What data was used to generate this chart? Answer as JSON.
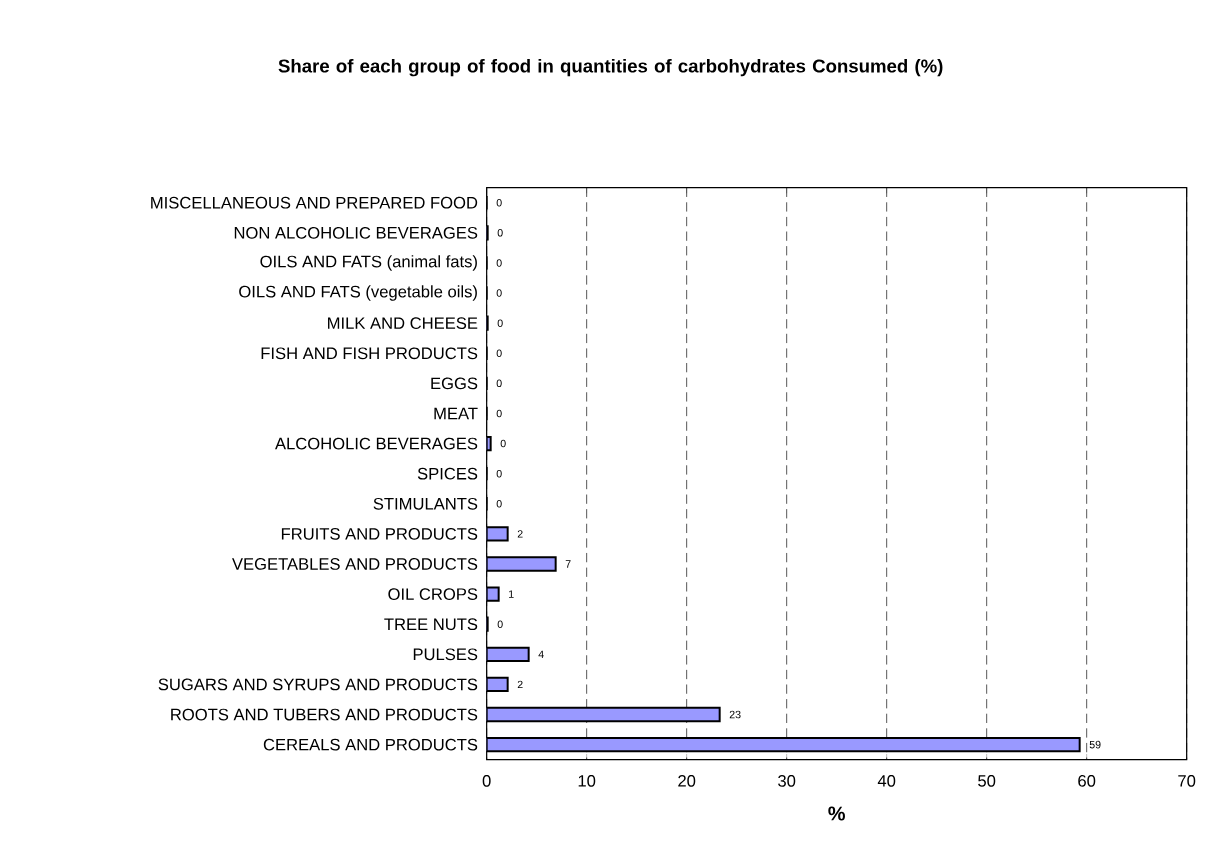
{
  "chart_data": {
    "type": "bar",
    "orientation": "horizontal",
    "title": "Share of each group of food in quantities of carbohydrates Consumed (%)",
    "xlabel": "%",
    "categories": [
      "MISCELLANEOUS AND PREPARED FOOD",
      "NON ALCOHOLIC BEVERAGES",
      "OILS AND FATS (animal fats)",
      "OILS AND FATS (vegetable oils)",
      "MILK AND CHEESE",
      "FISH AND FISH PRODUCTS",
      "EGGS",
      "MEAT",
      "ALCOHOLIC BEVERAGES",
      "SPICES",
      "STIMULANTS",
      "FRUITS AND PRODUCTS",
      "VEGETABLES AND PRODUCTS",
      "OIL CROPS",
      "TREE NUTS",
      "PULSES",
      "SUGARS AND SYRUPS AND PRODUCTS",
      "ROOTS AND TUBERS AND PRODUCTS",
      "CEREALS AND PRODUCTS"
    ],
    "values": [
      0,
      0.1,
      0,
      0,
      0.1,
      0,
      0,
      0,
      0.4,
      0,
      0,
      2.1,
      6.9,
      1.2,
      0.1,
      4.2,
      2.1,
      23.3,
      59.3
    ],
    "value_labels": [
      "0",
      "0",
      "0",
      "0",
      "0",
      "0",
      "0",
      "0",
      "0",
      "0",
      "0",
      "2",
      "7",
      "1",
      "0",
      "4",
      "2",
      "23",
      "59"
    ],
    "color": "#9999ff",
    "xlim": [
      0,
      70
    ],
    "xticks": [
      0,
      10,
      20,
      30,
      40,
      50,
      60,
      70
    ],
    "grid": "x"
  }
}
